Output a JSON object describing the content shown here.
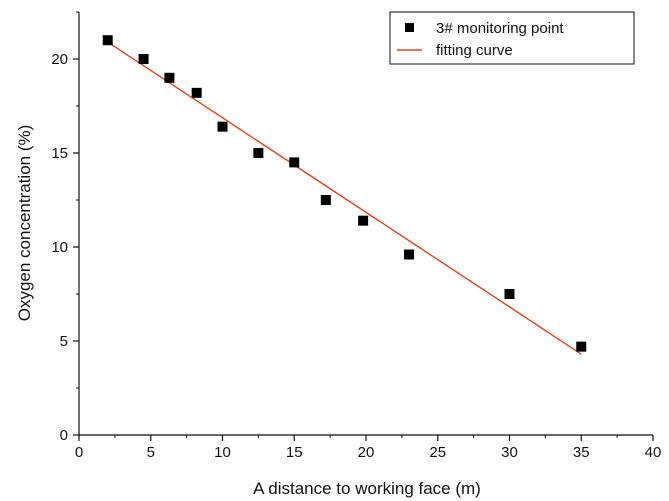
{
  "chart_data": {
    "type": "scatter",
    "xlabel": "A distance to working face (m)",
    "ylabel": "Oxygen concentration (%)",
    "xlim": [
      0,
      40
    ],
    "ylim": [
      0,
      22.5
    ],
    "x_ticks": [
      0,
      5,
      10,
      15,
      20,
      25,
      30,
      35,
      40
    ],
    "y_ticks": [
      0,
      5,
      10,
      15,
      20
    ],
    "grid": false,
    "legend_position": "top-right",
    "series": [
      {
        "name": "3# monitoring point",
        "kind": "scatter",
        "marker": "square",
        "color": "#000000",
        "x": [
          2,
          4.5,
          6.3,
          8.2,
          10,
          12.5,
          15,
          17.2,
          19.8,
          23,
          30,
          35
        ],
        "y": [
          21,
          20,
          19,
          18.2,
          16.4,
          15,
          14.5,
          12.5,
          11.4,
          9.6,
          7.5,
          4.7
        ]
      },
      {
        "name": "fitting curve",
        "kind": "line",
        "color": "#e8401c",
        "x": [
          2,
          35
        ],
        "y": [
          20.9,
          4.3
        ]
      }
    ]
  }
}
